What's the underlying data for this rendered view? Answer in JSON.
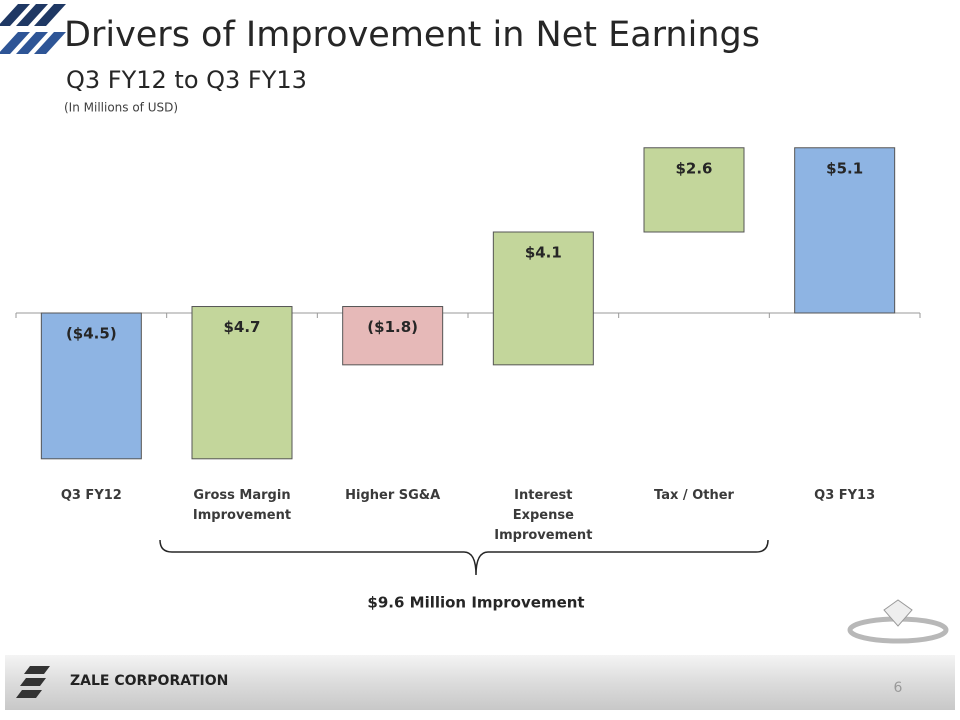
{
  "chart_data": {
    "type": "waterfall",
    "title": "Drivers of Improvement in Net Earnings",
    "subtitle": "Q3 FY12 to Q3 FY13",
    "note": "(In Millions of USD)",
    "categories": [
      "Q3 FY12",
      "Gross Margin Improvement",
      "Higher SG&A",
      "Interest Expense Improvement",
      "Tax / Other",
      "Q3 FY13"
    ],
    "measure": [
      "total",
      "relative",
      "relative",
      "relative",
      "relative",
      "total"
    ],
    "values": [
      -4.5,
      4.7,
      -1.8,
      4.1,
      2.6,
      5.1
    ],
    "value_labels": [
      "($4.5)",
      "$4.7",
      "($1.8)",
      "$4.1",
      "$2.6",
      "$5.1"
    ],
    "colors": {
      "total": "#8eb4e3",
      "increase": "#c3d69b",
      "decrease": "#e6b9b8"
    },
    "annotation": "$9.6 Million Improvement"
  },
  "footer": {
    "company": "ZALE CORPORATION",
    "page": "6"
  }
}
